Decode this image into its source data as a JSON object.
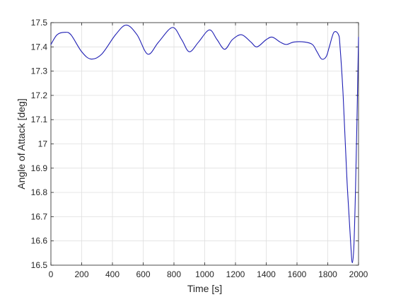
{
  "chart_data": {
    "type": "line",
    "title": "",
    "xlabel": "Time [s]",
    "ylabel": "Angle of Attack [deg]",
    "xlim": [
      0,
      2000
    ],
    "ylim": [
      16.5,
      17.5
    ],
    "x_ticks": [
      0,
      200,
      400,
      600,
      800,
      1000,
      1200,
      1400,
      1600,
      1800,
      2000
    ],
    "y_ticks": [
      16.5,
      16.6,
      16.7,
      16.8,
      16.9,
      17,
      17.1,
      17.2,
      17.3,
      17.4,
      17.5
    ],
    "grid": true,
    "series": [
      {
        "color": "#1f1fb4",
        "x": [
          0,
          40,
          90,
          130,
          200,
          260,
          330,
          420,
          490,
          560,
          630,
          700,
          790,
          850,
          900,
          960,
          1030,
          1080,
          1130,
          1180,
          1240,
          1300,
          1340,
          1400,
          1440,
          1490,
          1530,
          1580,
          1650,
          1700,
          1730,
          1760,
          1790,
          1810,
          1840,
          1870,
          1880,
          1900,
          1925,
          1950,
          1960,
          1970,
          1980,
          1990,
          2000
        ],
        "y": [
          17.41,
          17.45,
          17.46,
          17.45,
          17.38,
          17.35,
          17.37,
          17.45,
          17.49,
          17.45,
          17.37,
          17.42,
          17.48,
          17.43,
          17.38,
          17.42,
          17.47,
          17.43,
          17.39,
          17.43,
          17.45,
          17.42,
          17.4,
          17.43,
          17.44,
          17.42,
          17.41,
          17.42,
          17.42,
          17.41,
          17.38,
          17.35,
          17.36,
          17.4,
          17.46,
          17.45,
          17.4,
          17.2,
          16.85,
          16.58,
          16.51,
          16.58,
          16.8,
          17.1,
          17.44
        ]
      }
    ]
  }
}
